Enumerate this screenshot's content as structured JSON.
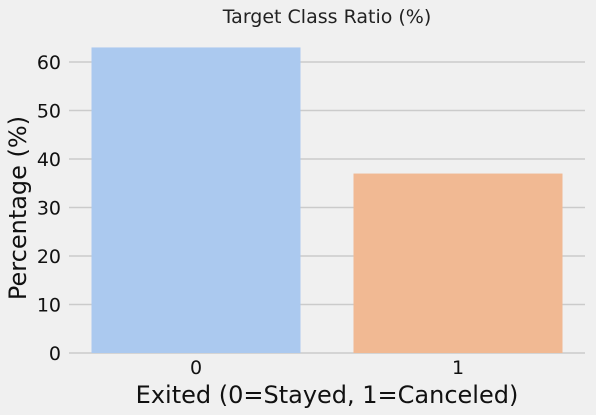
{
  "chart_data": {
    "type": "bar",
    "title": "Target Class Ratio (%)",
    "xlabel": "Exited (0=Stayed, 1=Canceled)",
    "ylabel": "Percentage (%)",
    "categories": [
      "0",
      "1"
    ],
    "values": [
      63.0,
      37.0
    ],
    "ylim": [
      0,
      64
    ],
    "yticks": [
      0,
      10,
      20,
      30,
      40,
      50,
      60
    ],
    "grid": "horizontal",
    "legend": "none",
    "colors": [
      "#abc9ef",
      "#f1b993"
    ],
    "background": "#f0f0f0",
    "grid_color": "#cbcbcb"
  }
}
